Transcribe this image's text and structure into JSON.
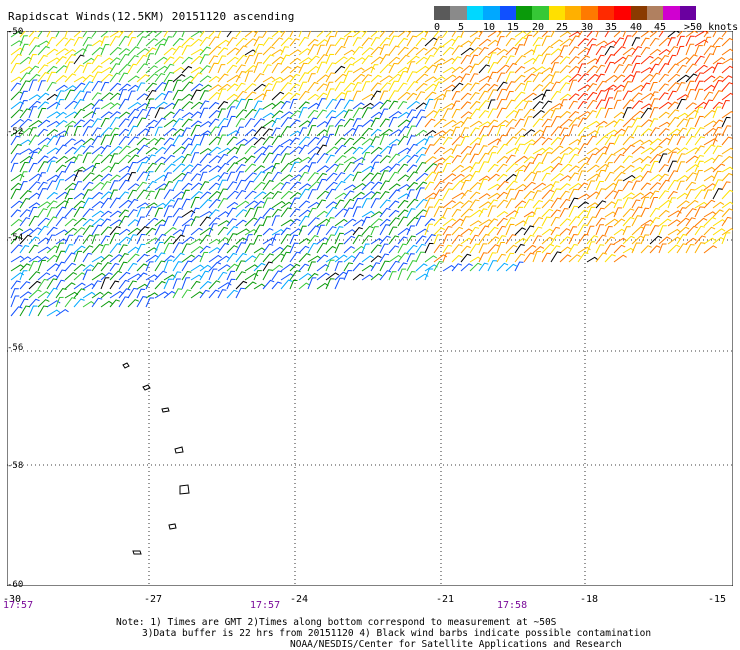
{
  "header": {
    "title": "Rapidscat Winds(12.5KM) 20151120 ascending"
  },
  "legend": {
    "colors": [
      "#5a5a5a",
      "#8a8a8a",
      "#00d8ff",
      "#00a8ff",
      "#1050ff",
      "#0a9a0a",
      "#36c836",
      "#ffe000",
      "#ffb000",
      "#ff7a00",
      "#ff2a00",
      "#ff0000",
      "#8a3a00",
      "#b08060",
      "#d000d0",
      "#6a00a0"
    ],
    "labels": [
      "0",
      "5",
      "10",
      "15",
      "20",
      "25",
      "30",
      "35",
      "40",
      "45",
      ">50 knots"
    ]
  },
  "axes": {
    "lat_labels": [
      "-50",
      "-52",
      "-54",
      "-56",
      "-58",
      "-60"
    ],
    "lon_labels": [
      "-30",
      "-27",
      "-24",
      "-21",
      "-18",
      "-15"
    ],
    "time_labels": [
      "17:57",
      "17:57",
      "17:58"
    ]
  },
  "footer": {
    "note_line1": "Note: 1) Times are GMT 2)Times along bottom correspond to measurement at ~50S",
    "note_line2": "3)Data buffer is 22 hrs from 20151120 4) Black wind barbs indicate possible contamination",
    "note_line3": "NOAA/NESDIS/Center for Satellite Applications and Research"
  }
}
